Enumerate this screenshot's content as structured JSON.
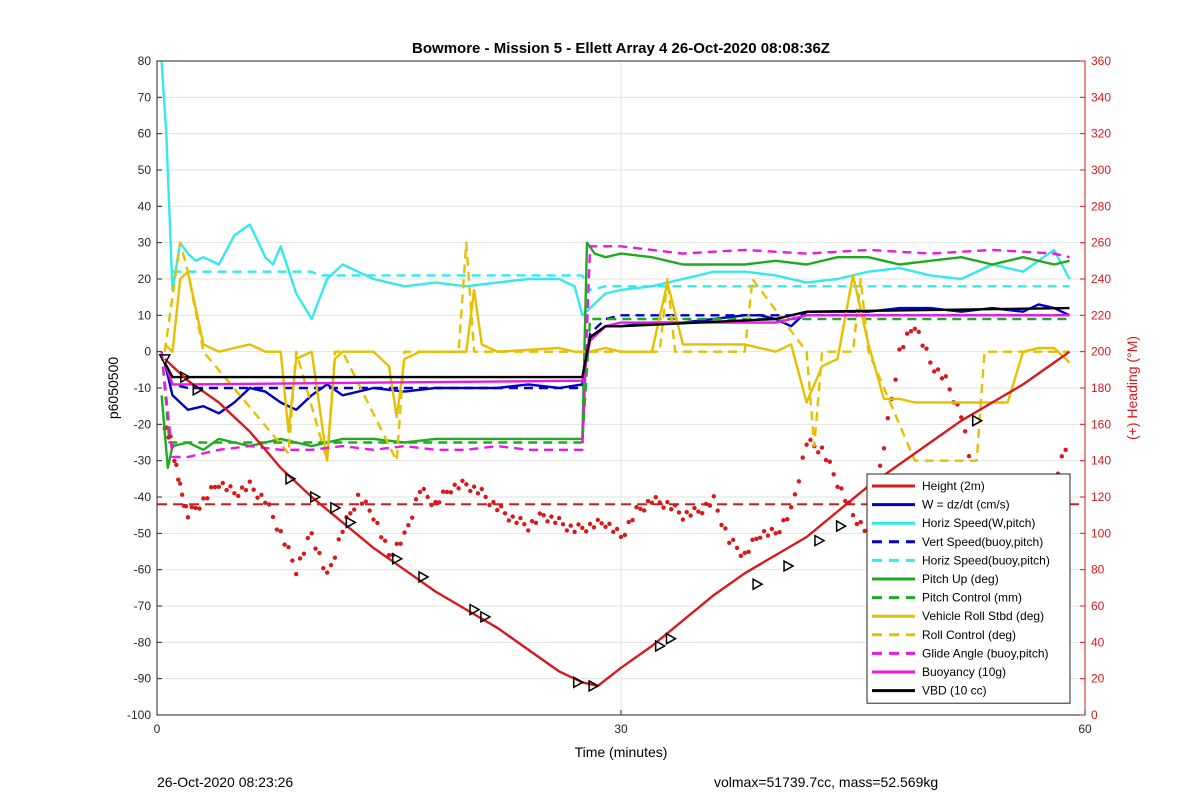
{
  "footer": {
    "timestamp": "26-Oct-2020 08:23:26",
    "stats": "volmax=51739.7cc, mass=52.569kg"
  },
  "chart_data": {
    "type": "line",
    "title": "Bowmore - Mission 5 - Ellett Array 4 26-Oct-2020 08:08:36Z",
    "xlabel": "Time (minutes)",
    "ylabel_left": "p6050500",
    "ylabel_right": "(+) Heading (°M)",
    "xlim": [
      0,
      60
    ],
    "ylim_left": [
      -100,
      80
    ],
    "ylim_right": [
      0,
      360
    ],
    "xticks": [
      0,
      30,
      60
    ],
    "yticks_left": [
      -100,
      -90,
      -80,
      -70,
      -60,
      -50,
      -40,
      -30,
      -20,
      -10,
      0,
      10,
      20,
      30,
      40,
      50,
      60,
      70,
      80
    ],
    "yticks_right": [
      0,
      20,
      40,
      60,
      80,
      100,
      120,
      140,
      160,
      180,
      200,
      220,
      240,
      260,
      280,
      300,
      320,
      340,
      360
    ],
    "grid": true,
    "legend_position": "bottom-right",
    "colors": {
      "height": "#d7191c",
      "w": "#0000c8",
      "cyan": "#35e8ee",
      "green": "#1faa1f",
      "yellow": "#e6c000",
      "magenta": "#e619e6",
      "black": "#000000",
      "heading": "#d7191c"
    },
    "series": [
      {
        "name": "Height (2m)",
        "color": "#d7191c",
        "dash": "solid",
        "x": [
          0.5,
          2,
          4,
          6,
          8,
          10,
          12,
          14,
          16,
          18,
          20,
          22,
          24,
          26,
          27.5,
          28.5,
          30,
          32,
          34,
          36,
          38,
          40,
          42,
          44,
          46,
          48,
          50,
          52,
          54,
          56,
          58,
          59
        ],
        "y": [
          -2,
          -8,
          -14,
          -22,
          -32,
          -40,
          -47,
          -54,
          -60,
          -66,
          -71,
          -76,
          -82,
          -88,
          -91,
          -92,
          -87,
          -81,
          -74,
          -67,
          -61,
          -56,
          -51,
          -44,
          -37,
          -31,
          -25,
          -19,
          -14,
          -9,
          -3,
          0
        ]
      },
      {
        "name": "W = dz/dt (cm/s)",
        "color": "#0000c8",
        "dash": "solid",
        "x": [
          0.5,
          1,
          1.5,
          2,
          3,
          4,
          5,
          6,
          7,
          8,
          9,
          10,
          11,
          12,
          14,
          16,
          18,
          20,
          22,
          24,
          26,
          27.5,
          28,
          29,
          30,
          32,
          34,
          36,
          38,
          39,
          40,
          41,
          42,
          44,
          46,
          48,
          50,
          52,
          54,
          56,
          57,
          58,
          59
        ],
        "y": [
          -3,
          -12,
          -14,
          -16,
          -15,
          -17,
          -14,
          -10,
          -11,
          -14,
          -16,
          -12,
          -9,
          -12,
          -10,
          -11,
          -10,
          -10,
          -10,
          -9,
          -10,
          -9,
          4,
          7,
          7,
          8,
          8,
          9,
          10,
          10,
          9,
          7,
          11,
          11,
          11,
          12,
          12,
          11,
          12,
          11,
          13,
          12,
          10
        ]
      },
      {
        "name": "Horiz Speed(W,pitch)",
        "color": "#35e8ee",
        "dash": "solid",
        "x": [
          0.3,
          0.6,
          1,
          1.5,
          2,
          2.5,
          3,
          4,
          5,
          6,
          7,
          7.5,
          8,
          9,
          10,
          11,
          12,
          13,
          14,
          16,
          18,
          20,
          22,
          24,
          26,
          27,
          27.5,
          28,
          29,
          30,
          32,
          34,
          36,
          38,
          40,
          42,
          44,
          46,
          48,
          50,
          52,
          54,
          56,
          58,
          59
        ],
        "y": [
          80,
          60,
          17,
          30,
          27,
          25,
          26,
          24,
          32,
          35,
          26,
          24,
          29,
          16,
          9,
          20,
          24,
          22,
          20,
          18,
          19,
          18,
          19,
          20,
          20,
          18,
          10,
          12,
          16,
          17,
          18,
          20,
          22,
          22,
          21,
          19,
          20,
          22,
          23,
          21,
          20,
          24,
          22,
          28,
          20
        ]
      },
      {
        "name": "Vert Speed(buoy,pitch)",
        "color": "#0000c8",
        "dash": "dash",
        "x": [
          0.5,
          1,
          2,
          3,
          27.5,
          28,
          29,
          30,
          59
        ],
        "y": [
          -3,
          -9,
          -10,
          -10,
          -10,
          5,
          9,
          10,
          10
        ]
      },
      {
        "name": "Horiz Speed(buoy,pitch)",
        "color": "#35e8ee",
        "dash": "dash",
        "x": [
          1,
          10,
          10.5,
          27.5,
          28,
          29,
          59
        ],
        "y": [
          22,
          22,
          21,
          21,
          17,
          18,
          18
        ]
      },
      {
        "name": "Pitch Up (deg)",
        "color": "#1faa1f",
        "dash": "solid",
        "x": [
          0.3,
          0.7,
          1,
          2,
          3,
          4,
          5,
          6,
          8,
          10,
          12,
          14,
          16,
          18,
          20,
          22,
          24,
          26,
          27.5,
          27.8,
          28.3,
          29,
          30,
          32,
          34,
          36,
          38,
          40,
          42,
          44,
          46,
          48,
          50,
          52,
          54,
          56,
          58,
          59
        ],
        "y": [
          -12,
          -32,
          -26,
          -25,
          -27,
          -24,
          -25,
          -26,
          -24,
          -26,
          -24,
          -24,
          -25,
          -24,
          -24,
          -24,
          -24,
          -24,
          -24,
          30,
          27,
          26,
          27,
          26,
          24,
          24,
          24,
          25,
          24,
          26,
          26,
          24,
          25,
          26,
          24,
          26,
          24,
          25
        ]
      },
      {
        "name": "Pitch Control (mm)",
        "color": "#1faa1f",
        "dash": "dash",
        "x": [
          0.3,
          0.8,
          1,
          27.5,
          28,
          59
        ],
        "y": [
          0,
          -25,
          -25,
          -25,
          9,
          9
        ]
      },
      {
        "name": "Vehicle Roll Stbd (deg)",
        "color": "#e6c000",
        "dash": "solid",
        "x": [
          0.5,
          1,
          1.5,
          2,
          3,
          4,
          5,
          6,
          7,
          8,
          8.5,
          9,
          10,
          11,
          11.5,
          12,
          14,
          15,
          15.5,
          16,
          17,
          18,
          19,
          20,
          20.5,
          21,
          22,
          26,
          27,
          28,
          29,
          30,
          32,
          33,
          34,
          36,
          38,
          40,
          41,
          42,
          43,
          44,
          45,
          46,
          47,
          48,
          49,
          50,
          51,
          52,
          53,
          54,
          55,
          56,
          57,
          58,
          59
        ],
        "y": [
          2,
          0,
          20,
          22,
          2,
          0,
          1,
          2,
          0,
          0,
          -22,
          -2,
          0,
          -30,
          -2,
          0,
          0,
          -4,
          -18,
          -2,
          0,
          0,
          0,
          0,
          17,
          2,
          0,
          1,
          0,
          0,
          1,
          0,
          0,
          19,
          2,
          2,
          2,
          0,
          2,
          -14,
          -4,
          -2,
          21,
          2,
          -13,
          -13,
          -14,
          -14,
          -14,
          -14,
          -14,
          -14,
          -14,
          0,
          1,
          1,
          -3
        ]
      },
      {
        "name": "Roll Control (deg)",
        "color": "#e6c000",
        "dash": "dash",
        "x": [
          0.5,
          1.5,
          2,
          3,
          8.5,
          9,
          11,
          11.5,
          12,
          15.5,
          16,
          19.5,
          20,
          20.5,
          21,
          27.5,
          28,
          32.5,
          33,
          33.5,
          38,
          38.5,
          42,
          42.5,
          43,
          45,
          45.5,
          46,
          49,
          53,
          53.5,
          54,
          59
        ],
        "y": [
          0,
          30,
          22,
          0,
          -28,
          0,
          -30,
          0,
          0,
          -30,
          0,
          0,
          30,
          0,
          0,
          0,
          0,
          0,
          20,
          0,
          0,
          20,
          0,
          -26,
          0,
          0,
          20,
          0,
          -30,
          -30,
          0,
          0,
          0
        ]
      },
      {
        "name": "Glide Angle (buoy,pitch)",
        "color": "#e619e6",
        "dash": "dash",
        "x": [
          0.3,
          1,
          2,
          4,
          6,
          8,
          10,
          12,
          14,
          16,
          18,
          20,
          22,
          24,
          26,
          27.5,
          28,
          30,
          34,
          38,
          42,
          46,
          50,
          54,
          58,
          59
        ],
        "y": [
          0,
          -29,
          -29,
          -27,
          -26,
          -27,
          -27,
          -26,
          -27,
          -26,
          -27,
          -27,
          -26,
          -27,
          -27,
          -27,
          29,
          29,
          27,
          28,
          27,
          28,
          27,
          28,
          27,
          26
        ]
      },
      {
        "name": "Buoyancy (10g)",
        "color": "#e619e6",
        "dash": "solid",
        "x": [
          0.5,
          1,
          2,
          27.5,
          28,
          29,
          30,
          35,
          40,
          42,
          59
        ],
        "y": [
          -3,
          -9,
          -9,
          -8,
          3,
          7,
          8,
          8,
          8,
          10,
          10
        ]
      },
      {
        "name": "VBD (10 cc)",
        "color": "#000000",
        "dash": "solid",
        "x": [
          0.5,
          1,
          2,
          27.5,
          28,
          29,
          30,
          35,
          40,
          42,
          59
        ],
        "y": [
          -3,
          -7,
          -7,
          -7,
          4,
          7,
          7,
          8,
          9,
          11,
          12
        ]
      }
    ],
    "heading_series": {
      "color": "#d7191c",
      "axis": "right",
      "x": [
        0.5,
        1,
        1.5,
        2,
        3,
        4,
        5,
        6,
        7,
        8,
        9,
        10,
        11,
        12,
        13,
        14,
        15,
        16,
        17,
        18,
        19,
        20,
        21,
        22,
        23,
        24,
        25,
        26,
        27,
        28,
        29,
        30,
        31,
        32,
        33,
        34,
        35,
        36,
        37,
        38,
        39,
        40,
        41,
        42,
        43,
        44,
        45,
        46,
        47,
        48,
        49,
        50,
        51,
        52,
        53,
        54,
        55,
        56,
        57,
        58,
        59
      ],
      "y": [
        160,
        148,
        125,
        110,
        118,
        128,
        122,
        126,
        118,
        100,
        80,
        100,
        76,
        102,
        120,
        110,
        88,
        98,
        124,
        116,
        125,
        127,
        122,
        114,
        108,
        104,
        110,
        106,
        102,
        104,
        106,
        98,
        112,
        118,
        116,
        110,
        112,
        118,
        96,
        88,
        100,
        100,
        112,
        150,
        146,
        128,
        110,
        100,
        148,
        200,
        215,
        194,
        184,
        165,
        120,
        88,
        94,
        104,
        118,
        128,
        152
      ]
    },
    "heading_reference": {
      "color": "#d7191c",
      "dash": "dash",
      "axis": "right",
      "y": 116
    },
    "markers": {
      "start_down_triangle": {
        "x": 0.5,
        "y": -2
      },
      "triangles": [
        {
          "x": 1.8,
          "y": -7
        },
        {
          "x": 2.6,
          "y": -10.5
        },
        {
          "x": 8.6,
          "y": -35
        },
        {
          "x": 10.2,
          "y": -40
        },
        {
          "x": 11.5,
          "y": -43
        },
        {
          "x": 12.5,
          "y": -47
        },
        {
          "x": 15.5,
          "y": -57
        },
        {
          "x": 17.2,
          "y": -62
        },
        {
          "x": 20.5,
          "y": -71
        },
        {
          "x": 21.2,
          "y": -73
        },
        {
          "x": 27.2,
          "y": -91
        },
        {
          "x": 28.2,
          "y": -92
        },
        {
          "x": 32.5,
          "y": -81
        },
        {
          "x": 33.2,
          "y": -79
        },
        {
          "x": 38.8,
          "y": -64
        },
        {
          "x": 40.8,
          "y": -59
        },
        {
          "x": 42.8,
          "y": -52
        },
        {
          "x": 44.2,
          "y": -48
        },
        {
          "x": 46.2,
          "y": -42
        },
        {
          "x": 48.0,
          "y": -37
        },
        {
          "x": 53.0,
          "y": -19
        }
      ]
    }
  }
}
